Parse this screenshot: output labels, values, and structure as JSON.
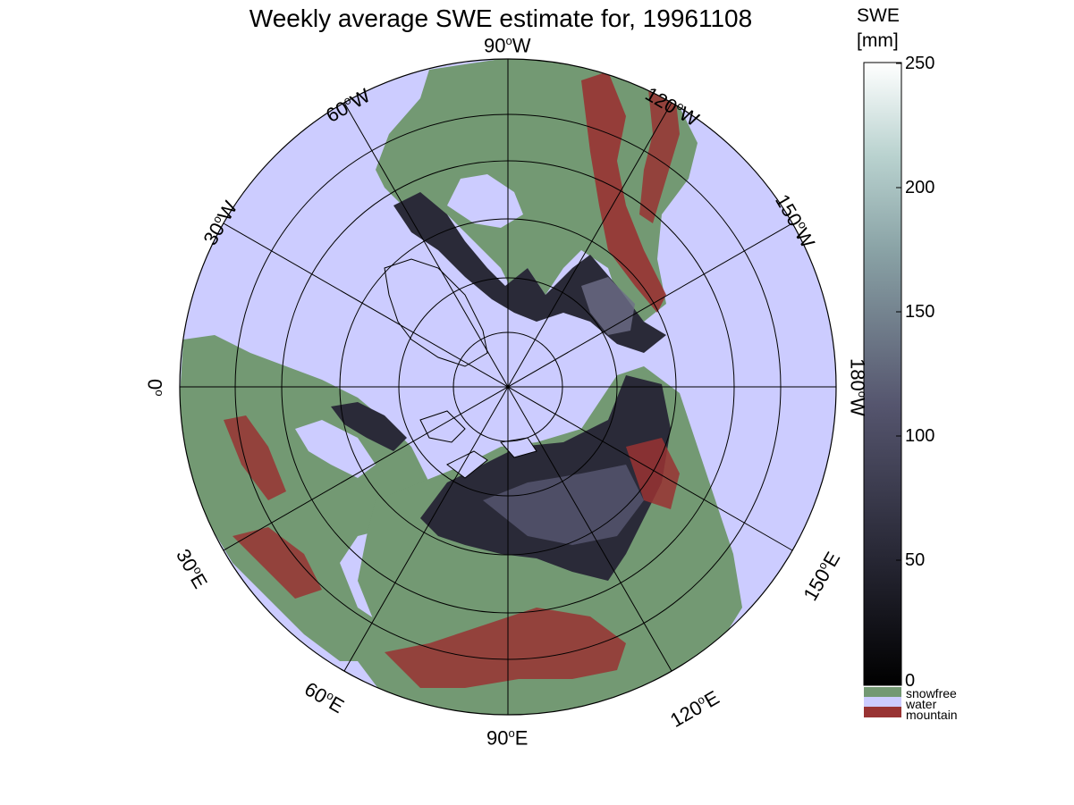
{
  "figure": {
    "title": "Weekly average SWE estimate for, 19961108"
  },
  "map": {
    "projection": "north polar stereographic",
    "longitude_labels": [
      {
        "lon": "90",
        "hem": "W"
      },
      {
        "lon": "120",
        "hem": "W"
      },
      {
        "lon": "150",
        "hem": "W"
      },
      {
        "lon": "180",
        "hem": "W"
      },
      {
        "lon": "150",
        "hem": "E"
      },
      {
        "lon": "120",
        "hem": "E"
      },
      {
        "lon": "90",
        "hem": "E"
      },
      {
        "lon": "60",
        "hem": "E"
      },
      {
        "lon": "30",
        "hem": "E"
      },
      {
        "lon": "0",
        "hem": ""
      },
      {
        "lon": "30",
        "hem": "W"
      },
      {
        "lon": "60",
        "hem": "W"
      }
    ],
    "colors": {
      "water": "#ccccff",
      "snowfree": "#739973",
      "mountain": "#993333",
      "snow_low": "#1a1a24",
      "snow_mid": "#55556e",
      "snow_high": "#bfd9d6"
    }
  },
  "colorbar": {
    "title_line1": "SWE",
    "title_line2": "[mm]",
    "ticks": [
      "250",
      "200",
      "150",
      "100",
      "50",
      "0"
    ],
    "range": [
      0,
      250
    ],
    "categories": [
      {
        "label": "snowfree",
        "color": "#739973"
      },
      {
        "label": "water",
        "color": "#ccccff"
      },
      {
        "label": "mountain",
        "color": "#993333"
      }
    ]
  }
}
